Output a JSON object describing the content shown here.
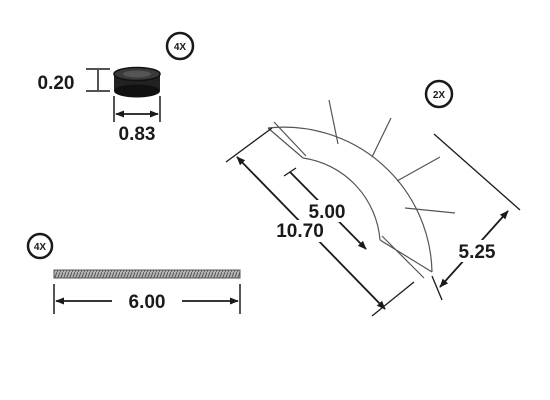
{
  "puck": {
    "quantity": "4X",
    "height": "0.20",
    "diameter": "0.83"
  },
  "rod": {
    "quantity": "4X",
    "length": "6.00"
  },
  "arc": {
    "quantity": "2X",
    "inner_radius": "5.00",
    "outer_radius": "10.70",
    "width": "5.25"
  },
  "colors": {
    "ink": "#1a1a1a",
    "puck_fill": "#222222",
    "rod_fill": "#9a9a9a"
  }
}
